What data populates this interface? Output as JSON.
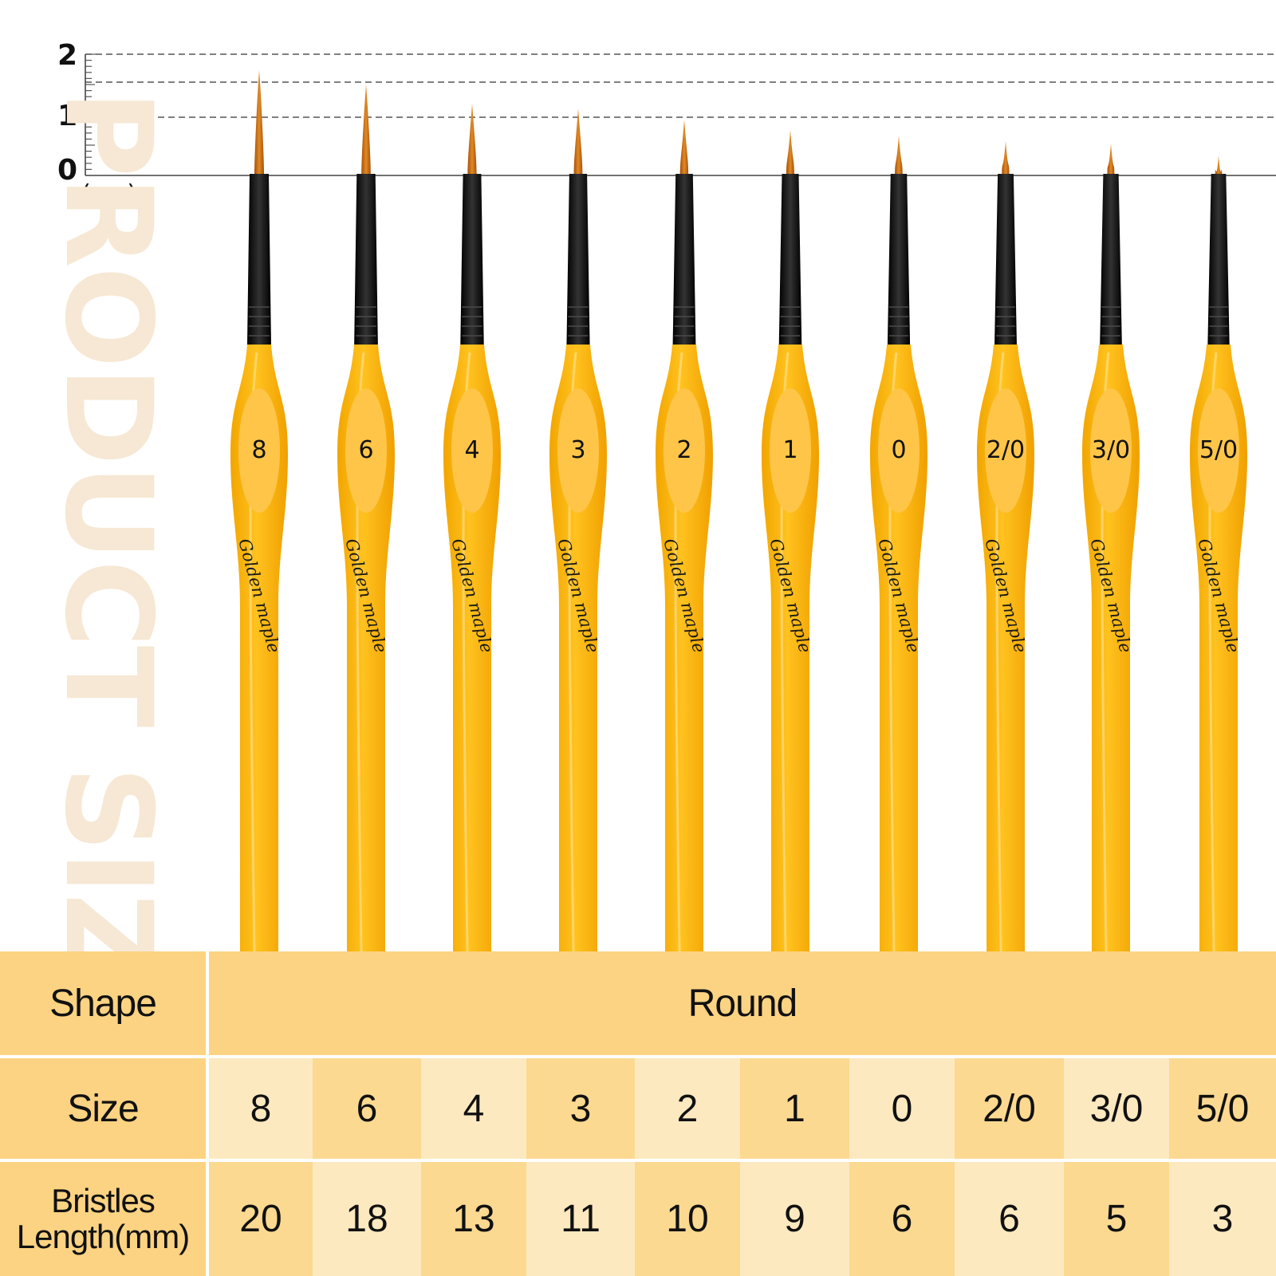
{
  "ruler": {
    "ticks": [
      "2",
      "1",
      "0"
    ],
    "unit": "(cm)"
  },
  "watermark": "PRODUCT SIZE",
  "brushes": [
    {
      "label": "8",
      "brand": "Golden maple",
      "bristle_mm": 20
    },
    {
      "label": "6",
      "brand": "Golden maple",
      "bristle_mm": 18
    },
    {
      "label": "4",
      "brand": "Golden maple",
      "bristle_mm": 13
    },
    {
      "label": "3",
      "brand": "Golden maple",
      "bristle_mm": 11
    },
    {
      "label": "2",
      "brand": "Golden maple",
      "bristle_mm": 10
    },
    {
      "label": "1",
      "brand": "Golden maple",
      "bristle_mm": 9
    },
    {
      "label": "0",
      "brand": "Golden maple",
      "bristle_mm": 6
    },
    {
      "label": "2/0",
      "brand": "Golden maple",
      "bristle_mm": 6
    },
    {
      "label": "3/0",
      "brand": "Golden maple",
      "bristle_mm": 5
    },
    {
      "label": "5/0",
      "brand": "Golden maple",
      "bristle_mm": 3
    }
  ],
  "table": {
    "shape_label": "Shape",
    "shape_value": "Round",
    "size_label": "Size",
    "bristles_label": "Bristles Length(mm)",
    "sizes": [
      "8",
      "6",
      "4",
      "3",
      "2",
      "1",
      "0",
      "2/0",
      "3/0",
      "5/0"
    ],
    "lengths": [
      "20",
      "18",
      "13",
      "11",
      "10",
      "9",
      "6",
      "6",
      "5",
      "3"
    ]
  },
  "colors": {
    "handle": "#f7b20e",
    "handle_highlight": "#ffd36b",
    "label_oval": "#ffc548",
    "ferrule": "#101010",
    "bristle": "#c96a12",
    "table_header": "#fcd382",
    "table_light": "#fde9c0",
    "table_mid": "#fcd991"
  }
}
